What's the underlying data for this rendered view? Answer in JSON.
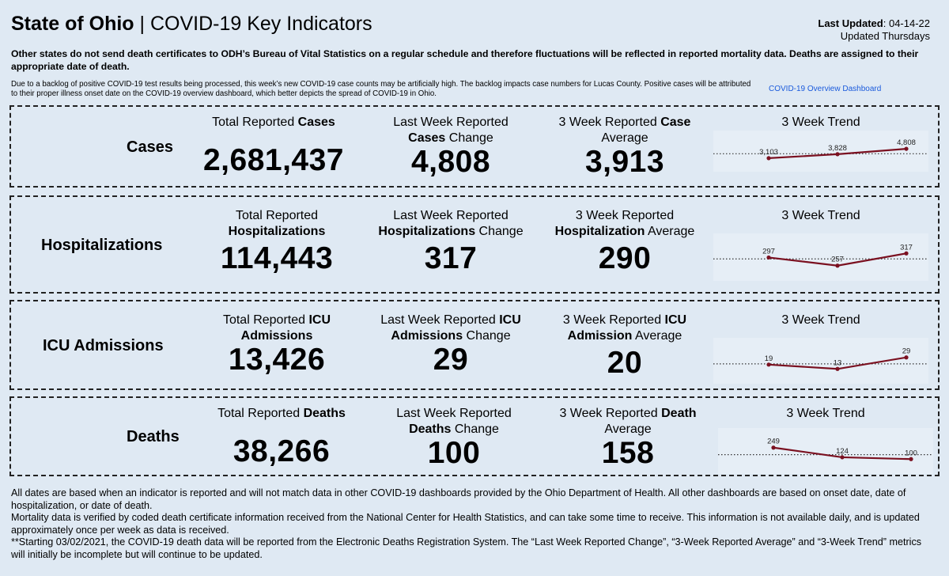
{
  "header": {
    "title_bold": "State of Ohio",
    "title_sep": " | ",
    "title_rest": "COVID-19 Key Indicators",
    "last_updated_label": "Last Updated",
    "last_updated_value": ": 04-14-22",
    "update_schedule": "Updated Thursdays"
  },
  "notices": {
    "bold": "Other states do not send death certificates to ODH’s Bureau of Vital Statistics on a regular schedule and therefore fluctuations will be reflected in reported mortality data. Deaths are assigned to their appropriate date of death.",
    "small": "Due to a backlog of positive COVID-19 test results being processed, this week’s new COVID-19 case counts may be artificially high. The backlog impacts case numbers for Lucas County. Positive cases will be attributed to their proper illness onset date on the COVID-19 overview dashboard, which better depicts the spread of COVID-19 in Ohio.",
    "dashboard_link": "COVID-19 Overview Dashboard"
  },
  "accent": {
    "trend_line": "#7a1020",
    "link": "#1a5adc",
    "background": "#dfe9f3"
  },
  "panels": {
    "cases": {
      "label": "Cases",
      "total_label_a": "Total Reported ",
      "total_label_b": "Cases",
      "total_label_c": "",
      "total_value": "2,681,437",
      "change_label_a": "Last Week Reported",
      "change_label_b": "Cases",
      "change_label_c": " Change",
      "change_value": "4,808",
      "avg_label_a": "3 Week Reported ",
      "avg_label_b": "Case",
      "avg_label_c": "Average",
      "avg_value": "3,913",
      "trend_label": "3 Week Trend",
      "trend_points": [
        "3,103",
        "3,828",
        "4,808"
      ]
    },
    "hosp": {
      "label": "Hospitalizations",
      "total_label_a": "Total Reported",
      "total_label_b": "Hospitalizations",
      "total_value": "114,443",
      "change_label_a": "Last Week Reported",
      "change_label_b": "Hospitalizations",
      "change_label_c": " Change",
      "change_value": "317",
      "avg_label_a": "3 Week Reported",
      "avg_label_b": "Hospitalization",
      "avg_label_c": " Average",
      "avg_value": "290",
      "trend_label": "3 Week Trend",
      "trend_points": [
        "297",
        "257",
        "317"
      ]
    },
    "icu": {
      "label": "ICU Admissions",
      "total_label_a": "Total Reported ",
      "total_label_b": "ICU",
      "total_label_c": "Admissions",
      "total_value": "13,426",
      "change_label_a": "Last Week Reported ",
      "change_label_b": "ICU",
      "change_label_c": "Admissions",
      "change_label_d": " Change",
      "change_value": "29",
      "avg_label_a": "3 Week Reported ",
      "avg_label_b": "ICU",
      "avg_label_c": "Admission",
      "avg_label_d": " Average",
      "avg_value": "20",
      "trend_label": "3 Week Trend",
      "trend_points": [
        "19",
        "13",
        "29"
      ]
    },
    "deaths": {
      "label": "Deaths",
      "total_label_a": "Total Reported ",
      "total_label_b": "Deaths",
      "total_value": "38,266",
      "change_label_a": "Last Week Reported",
      "change_label_b": "Deaths",
      "change_label_c": " Change",
      "change_value": "100",
      "avg_label_a": "3 Week Reported ",
      "avg_label_b": "Death",
      "avg_label_c": "Average",
      "avg_value": "158",
      "trend_label": "3 Week Trend",
      "trend_points": [
        "249",
        "124",
        "100"
      ]
    }
  },
  "chart_data": [
    {
      "type": "line",
      "categories": [
        "",
        "",
        ""
      ],
      "series": [
        {
          "values": [
            3103,
            3828,
            4808
          ]
        }
      ],
      "reference_line": 3913
    },
    {
      "type": "line",
      "categories": [
        "",
        "",
        ""
      ],
      "series": [
        {
          "values": [
            297,
            257,
            317
          ]
        }
      ],
      "reference_line": 290
    },
    {
      "type": "line",
      "categories": [
        "",
        "",
        ""
      ],
      "series": [
        {
          "values": [
            19,
            13,
            29
          ]
        }
      ],
      "reference_line": 20
    },
    {
      "type": "line",
      "categories": [
        "",
        "",
        ""
      ],
      "series": [
        {
          "values": [
            249,
            124,
            100
          ]
        }
      ],
      "reference_line": 158
    }
  ],
  "footer": {
    "p1": "All dates are based when an indicator is reported and will not match data in other COVID-19 dashboards provided by the Ohio Department of Health. All other dashboards are based on onset date, date of hospitalization, or date of death.",
    "p2": "Mortality data is verified by coded death certificate information received from the National Center for Health Statistics, and can take some time to receive. This information is not available daily, and is updated approximately once per week as data is received.",
    "p3": "**Starting 03/02/2021, the COVID-19 death data will be reported from the Electronic Deaths Registration System. The “Last Week Reported Change”, “3-Week Reported Average” and “3-Week Trend” metrics will initially be incomplete but will continue to be updated."
  }
}
